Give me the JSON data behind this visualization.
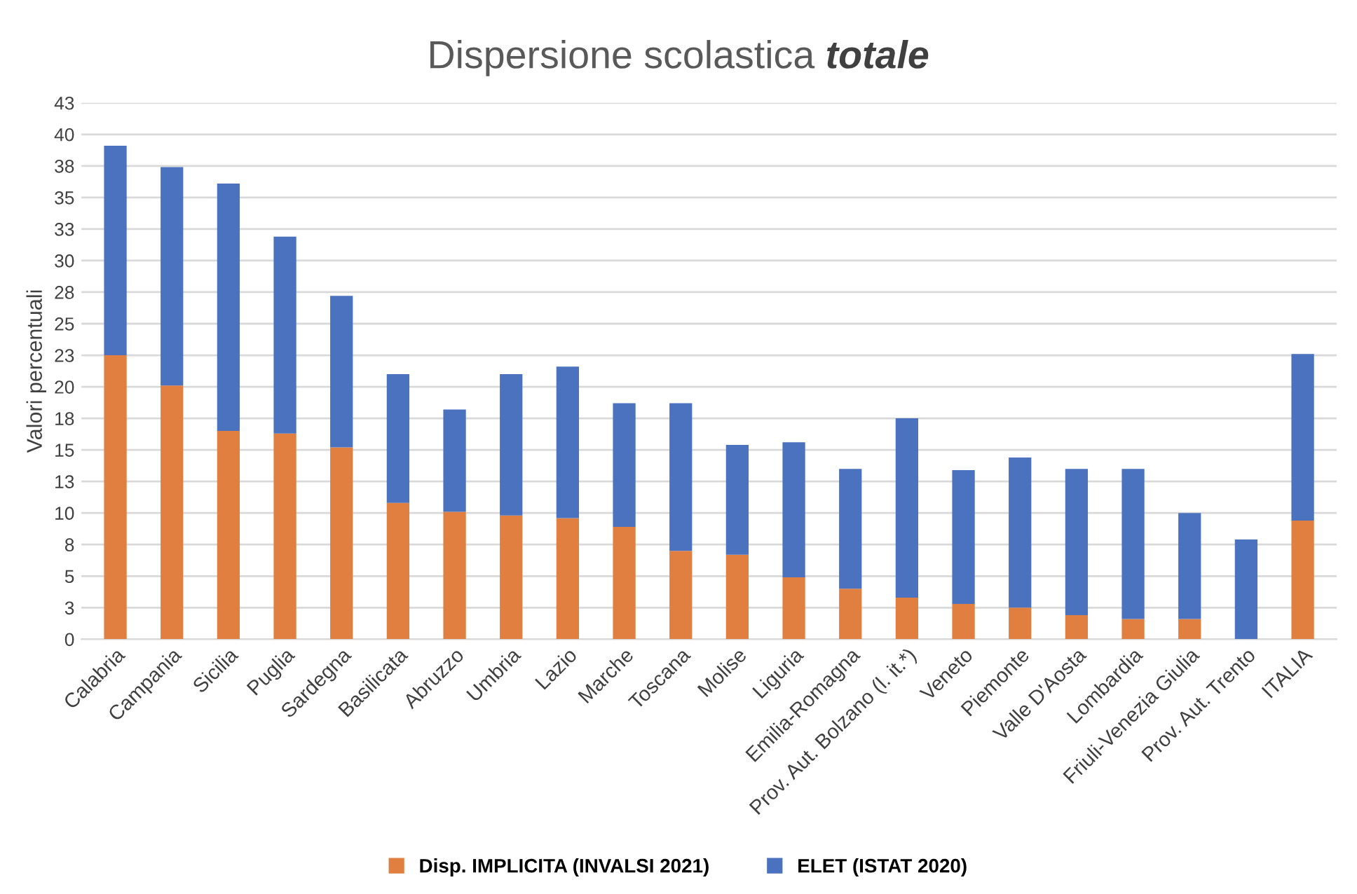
{
  "chart_data": {
    "type": "bar",
    "title": "Dispersione scolastica totale",
    "ylabel": "Valori percentuali",
    "stacked": true,
    "grid": "y",
    "legend": "bottom",
    "categories": [
      "Calabria",
      "Campania",
      "Sicilia",
      "Puglia",
      "Sardegna",
      "Basilicata",
      "Abruzzo",
      "Umbria",
      "Lazio",
      "Marche",
      "Toscana",
      "Molise",
      "Liguria",
      "Emilia-Romagna",
      "Prov. Aut. Bolzano (l. it.*)",
      "Veneto",
      "Piemonte",
      "Valle D'Aosta",
      "Lombardia",
      "Friuli-Venezia Giulia",
      "Prov. Aut. Trento",
      "ITALIA"
    ],
    "series": [
      {
        "name": "Disp. IMPLICITA (INVALSI 2021)",
        "color": "#e07f3f",
        "values": [
          22.5,
          20.1,
          16.5,
          16.3,
          15.2,
          10.8,
          10.1,
          9.8,
          9.6,
          8.9,
          7.0,
          6.7,
          4.9,
          4.0,
          3.3,
          2.8,
          2.5,
          1.9,
          1.6,
          1.6,
          0,
          9.4
        ]
      },
      {
        "name": "ELET (ISTAT 2020)",
        "color": "#4a72bf",
        "values": [
          16.6,
          17.3,
          19.6,
          15.6,
          12.0,
          10.2,
          8.1,
          11.2,
          12.0,
          9.8,
          11.7,
          8.7,
          10.7,
          9.5,
          14.2,
          10.6,
          11.9,
          11.6,
          11.9,
          8.4,
          7.9,
          13.2
        ]
      }
    ],
    "ylim": [
      0,
      42.5
    ],
    "yticks": [
      0,
      {
        "value": 2.5,
        "label": "3"
      },
      5,
      {
        "value": 7.5,
        "label": "8"
      },
      10,
      {
        "value": 12.5,
        "label": "13"
      },
      15,
      {
        "value": 17.5,
        "label": "18"
      },
      20,
      {
        "value": 22.5,
        "label": "23"
      },
      25,
      {
        "value": 27.5,
        "label": "28"
      },
      30,
      {
        "value": 32.5,
        "label": "33"
      },
      35,
      {
        "value": 37.5,
        "label": "38"
      },
      40,
      {
        "value": 42.5,
        "label": "43"
      }
    ]
  }
}
